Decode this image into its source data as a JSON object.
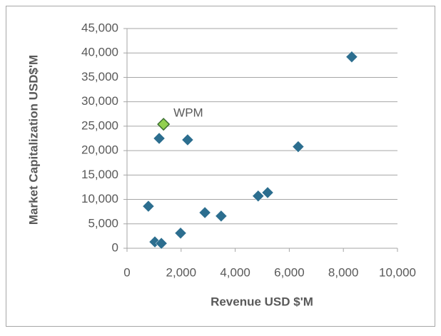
{
  "chart_data": {
    "type": "scatter",
    "xlabel": "Revenue USD $'M",
    "ylabel": "Market Capitalization USD$'M",
    "xlim": [
      0,
      10000
    ],
    "xticks": [
      0,
      {
        "value": 2000,
        "label": "2,000"
      },
      {
        "value": 4000,
        "label": "4,000"
      },
      {
        "value": 6000,
        "label": "6,000"
      },
      {
        "value": 8000,
        "label": "8,000"
      },
      {
        "value": 10000,
        "label": "10,000"
      }
    ],
    "ylim": [
      0,
      45000
    ],
    "yticks": [
      0,
      {
        "value": 5000,
        "label": "5,000"
      },
      {
        "value": 10000,
        "label": "10,000"
      },
      {
        "value": 15000,
        "label": "15,000"
      },
      {
        "value": 20000,
        "label": "20,000"
      },
      {
        "value": 25000,
        "label": "25,000"
      },
      {
        "value": 30000,
        "label": "30,000"
      },
      {
        "value": 35000,
        "label": "35,000"
      },
      {
        "value": 40000,
        "label": "40,000"
      },
      {
        "value": 45000,
        "label": "45,000"
      }
    ],
    "grid": true,
    "series": [
      {
        "color": "#2c6e8f",
        "x": [
          790,
          1030,
          1270,
          1190,
          2240,
          1980,
          2880,
          3480,
          4850,
          5200,
          6330,
          8310
        ],
        "values": [
          8600,
          1300,
          1000,
          22500,
          22200,
          3100,
          7300,
          6600,
          10700,
          11400,
          20800,
          39200
        ]
      },
      {
        "color": "#92d050",
        "x": [
          1350
        ],
        "values": [
          25400
        ],
        "point_labels": [
          "WPM"
        ]
      }
    ]
  }
}
